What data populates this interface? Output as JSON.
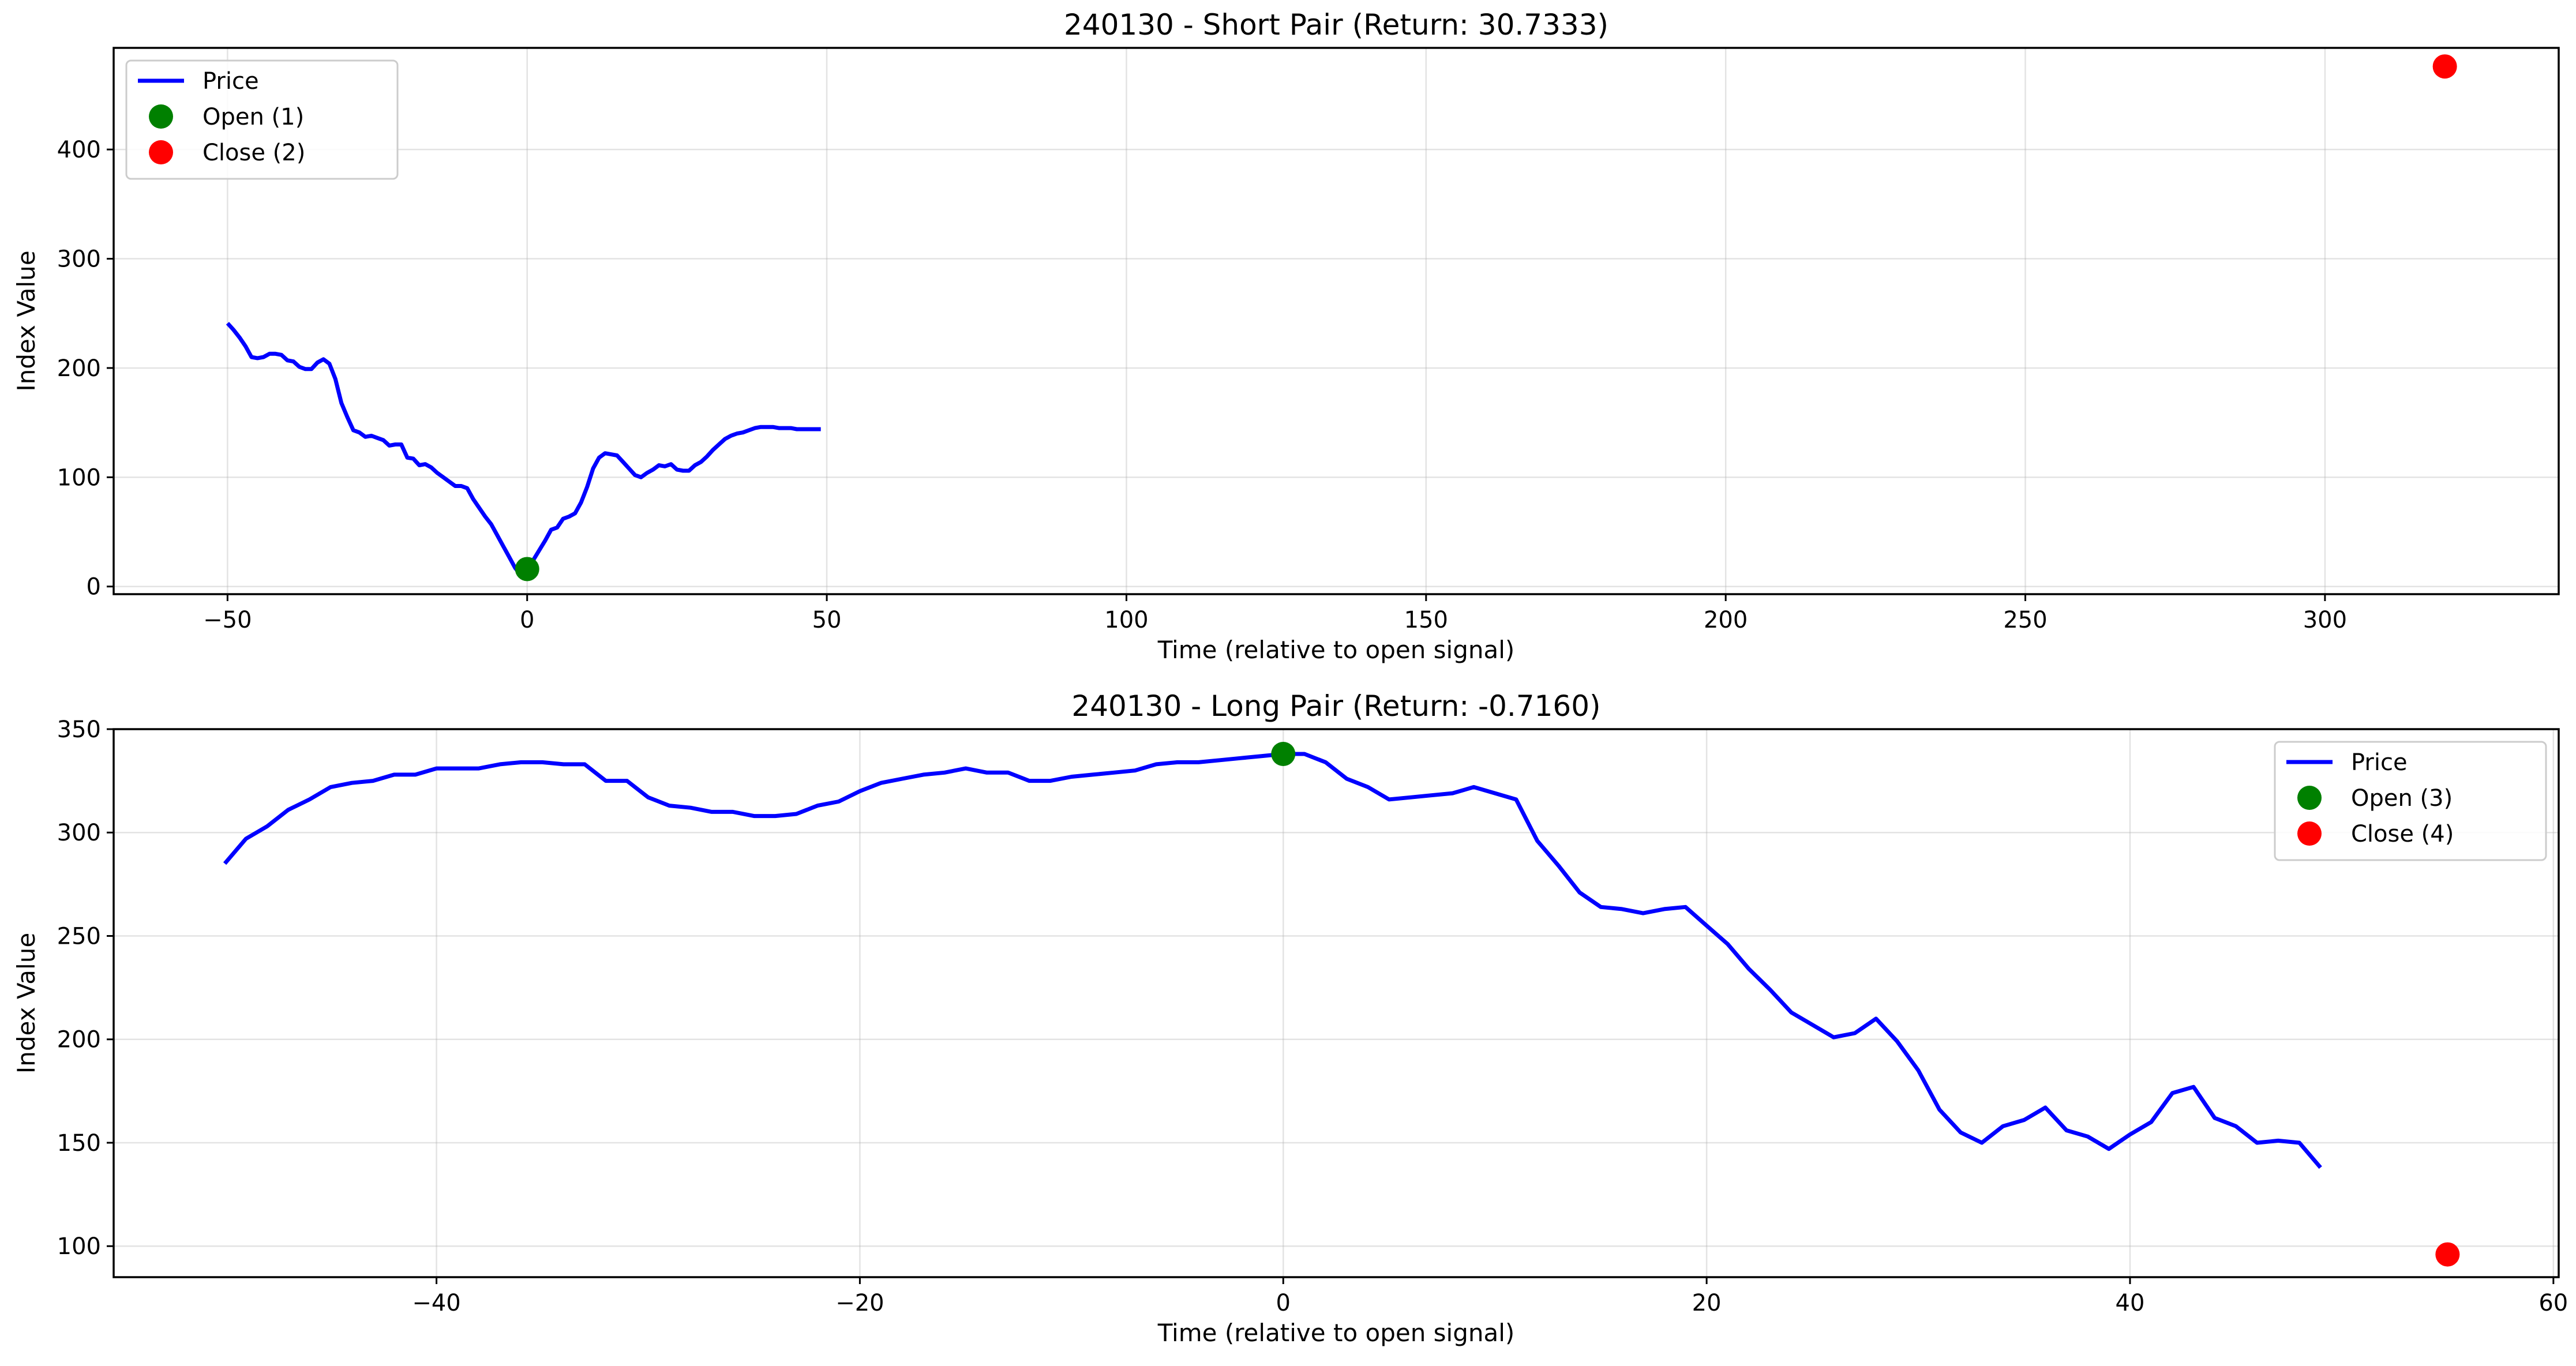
{
  "chart_data": [
    {
      "type": "line",
      "title": "240130 - Short Pair (Return: 30.7333)",
      "xlabel": "Time (relative to open signal)",
      "ylabel": "Index Value",
      "xlim": [
        -69,
        339
      ],
      "ylim": [
        -7,
        493
      ],
      "xticks": [
        -50,
        0,
        50,
        100,
        150,
        200,
        250,
        300
      ],
      "xtick_labels": [
        "−50",
        "0",
        "50",
        "100",
        "150",
        "200",
        "250",
        "300"
      ],
      "yticks": [
        0,
        100,
        200,
        300,
        400
      ],
      "ytick_labels": [
        "0",
        "100",
        "200",
        "300",
        "400"
      ],
      "grid": true,
      "legend_position": "upper-left",
      "series": [
        {
          "name": "Price",
          "kind": "line",
          "color": "#0000ff",
          "x": [
            -50,
            -49,
            -48,
            -47,
            -46,
            -45,
            -44,
            -43,
            -42,
            -41,
            -40,
            -39,
            -38,
            -37,
            -36,
            -35,
            -34,
            -33,
            -32,
            -31,
            -30,
            -29,
            -28,
            -27,
            -26,
            -25,
            -24,
            -23,
            -22,
            -21,
            -20,
            -19,
            -18,
            -17,
            -16,
            -15,
            -14,
            -13,
            -12,
            -11,
            -10,
            -9,
            -8,
            -7,
            -6,
            -5,
            -4,
            -3,
            -2,
            -1,
            0,
            1,
            2,
            3,
            4,
            5,
            6,
            7,
            8,
            9,
            10,
            11,
            12,
            13,
            14,
            15,
            16,
            17,
            18,
            19,
            20,
            21,
            22,
            23,
            24,
            25,
            26,
            27,
            28,
            29,
            30,
            31,
            32,
            33,
            34,
            35,
            36,
            37,
            38,
            39,
            40,
            41,
            42,
            43,
            44,
            45,
            46,
            47,
            48,
            49
          ],
          "y": [
            241,
            235,
            228,
            220,
            210,
            209,
            210,
            213,
            213,
            212,
            207,
            206,
            201,
            199,
            199,
            205,
            208,
            204,
            190,
            168,
            155,
            143,
            141,
            137,
            138,
            136,
            134,
            129,
            130,
            130,
            118,
            117,
            111,
            112,
            109,
            104,
            100,
            96,
            92,
            92,
            90,
            80,
            72,
            64,
            57,
            47,
            37,
            27,
            17,
            10,
            16,
            24,
            33,
            42,
            52,
            54,
            62,
            64,
            67,
            77,
            91,
            108,
            118,
            122,
            121,
            120,
            114,
            108,
            102,
            100,
            104,
            107,
            111,
            110,
            112,
            107,
            106,
            106,
            111,
            114,
            119,
            125,
            130,
            135,
            138,
            140,
            141,
            143,
            145,
            146,
            146,
            146,
            145,
            145,
            145,
            144,
            144,
            144,
            144,
            144
          ]
        },
        {
          "name": "Open (1)",
          "kind": "marker",
          "color": "#008000",
          "x": [
            0
          ],
          "y": [
            16
          ]
        },
        {
          "name": "Close (2)",
          "kind": "marker",
          "color": "#ff0000",
          "x": [
            320
          ],
          "y": [
            476
          ]
        }
      ]
    },
    {
      "type": "line",
      "title": "240130 - Long Pair (Return: -0.7160)",
      "xlabel": "Time (relative to open signal)",
      "ylabel": "Index Value",
      "xlim": [
        -55.25,
        60.25
      ],
      "ylim": [
        85,
        350
      ],
      "xticks": [
        -40,
        -20,
        0,
        20,
        40,
        60
      ],
      "xtick_labels": [
        "−40",
        "−20",
        "0",
        "20",
        "40",
        "60"
      ],
      "yticks": [
        100,
        150,
        200,
        250,
        300,
        350
      ],
      "ytick_labels": [
        "100",
        "150",
        "200",
        "250",
        "300",
        "350"
      ],
      "grid": true,
      "legend_position": "upper-right",
      "series": [
        {
          "name": "Price",
          "kind": "line",
          "color": "#0000ff",
          "x": [
            -50,
            -49,
            -48,
            -47,
            -46,
            -45,
            -44,
            -43,
            -42,
            -41,
            -40,
            -39,
            -38,
            -37,
            -36,
            -35,
            -34,
            -33,
            -32,
            -31,
            -30,
            -29,
            -28,
            -27,
            -26,
            -25,
            -24,
            -23,
            -22,
            -21,
            -20,
            -19,
            -18,
            -17,
            -16,
            -15,
            -14,
            -13,
            -12,
            -11,
            -10,
            -9,
            -8,
            -7,
            -6,
            -5,
            -4,
            -3,
            -2,
            -1,
            0,
            1,
            2,
            3,
            4,
            5,
            6,
            7,
            8,
            9,
            10,
            11,
            12,
            13,
            14,
            15,
            16,
            17,
            18,
            19,
            20,
            21,
            22,
            23,
            24,
            25,
            26,
            27,
            28,
            29,
            30,
            31,
            32,
            33,
            34,
            35,
            36,
            37,
            38,
            39,
            40,
            41,
            42,
            43,
            44,
            45,
            46,
            47,
            48,
            49
          ],
          "y": [
            285,
            297,
            303,
            311,
            316,
            322,
            324,
            325,
            328,
            328,
            331,
            331,
            331,
            333,
            334,
            334,
            333,
            333,
            325,
            325,
            317,
            313,
            312,
            310,
            310,
            308,
            308,
            309,
            313,
            315,
            320,
            324,
            326,
            328,
            329,
            331,
            329,
            329,
            325,
            325,
            327,
            328,
            329,
            330,
            333,
            334,
            334,
            335,
            336,
            337,
            338,
            338,
            334,
            326,
            322,
            316,
            317,
            318,
            319,
            322,
            319,
            316,
            296,
            284,
            271,
            264,
            263,
            261,
            263,
            264,
            255,
            246,
            234,
            224,
            213,
            207,
            201,
            203,
            210,
            199,
            185,
            166,
            155,
            150,
            158,
            161,
            167,
            156,
            153,
            147,
            154,
            160,
            174,
            177,
            162,
            158,
            150,
            151,
            150,
            138
          ]
        },
        {
          "name": "Open (3)",
          "kind": "marker",
          "color": "#008000",
          "x": [
            0
          ],
          "y": [
            338
          ]
        },
        {
          "name": "Close (4)",
          "kind": "marker",
          "color": "#ff0000",
          "x": [
            55
          ],
          "y": [
            96
          ]
        }
      ]
    }
  ]
}
